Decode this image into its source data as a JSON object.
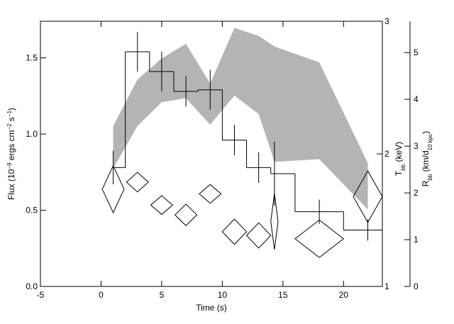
{
  "chart_data": {
    "type": "step",
    "x_label": "Time (s)",
    "y_label": [
      "Flux (10",
      "−9",
      " ergs cm",
      "−2",
      " s",
      "−1",
      ")"
    ],
    "y2_label": [
      "T",
      "bb",
      " (keV)"
    ],
    "y3_label": [
      "R",
      "bb",
      " (km/d",
      "10 kpc",
      ")"
    ],
    "xlim": [
      -5,
      23.2
    ],
    "xticks": [
      -5,
      0,
      5,
      10,
      15,
      20
    ],
    "ylim": [
      0,
      1.74
    ],
    "yticks": [
      {
        "value": 0,
        "label": "0.0"
      },
      {
        "value": 0.5,
        "label": "0.5"
      },
      {
        "value": 1,
        "label": "1.0"
      },
      {
        "value": 1.5,
        "label": "1.5"
      }
    ],
    "y2lim": [
      1,
      3
    ],
    "y2ticks": [
      1,
      2,
      3
    ],
    "y3lim": [
      0,
      5.67
    ],
    "y3ticks": [
      0,
      1,
      2,
      3,
      4,
      5
    ],
    "flux": {
      "bins": [
        1,
        2,
        4,
        6,
        8,
        10,
        12,
        14,
        16,
        20,
        23.2
      ],
      "values": [
        0.78,
        1.54,
        1.41,
        1.28,
        1.29,
        0.96,
        0.78,
        0.74,
        0.49,
        0.37
      ],
      "color": "#000000"
    },
    "flux_errors": {
      "x": [
        1,
        3,
        5,
        7,
        9,
        11,
        13,
        14.3,
        18,
        22
      ],
      "values": [
        0.78,
        1.54,
        1.41,
        1.28,
        1.29,
        0.96,
        0.78,
        0.74,
        0.49,
        0.37
      ],
      "errors": [
        0.11,
        0.13,
        0.13,
        0.1,
        0.13,
        0.1,
        0.1,
        0.21,
        0.08,
        0.07
      ]
    },
    "temperature_band": {
      "axis": "y2",
      "color": "#b4b4b4",
      "x": [
        1,
        3,
        5,
        7,
        9,
        11,
        13,
        14.3,
        18,
        22
      ],
      "upper": [
        2.21,
        2.56,
        2.72,
        2.83,
        2.53,
        2.95,
        2.89,
        2.81,
        2.69,
        1.93
      ],
      "lower": [
        1.89,
        2.21,
        2.39,
        2.42,
        2.22,
        2.44,
        2.3,
        1.94,
        1.96,
        1.58
      ]
    },
    "radius": {
      "axis": "y3",
      "x": [
        1,
        3,
        5,
        7,
        9,
        11,
        13,
        14.3,
        18,
        22
      ],
      "x_errors": [
        0.9,
        0.9,
        0.9,
        0.9,
        0.9,
        1,
        1,
        0.3,
        2,
        1.2
      ],
      "values": [
        2.08,
        2.23,
        1.74,
        1.53,
        1.98,
        1.17,
        1.09,
        1.39,
        1.02,
        1.92
      ],
      "errors": [
        0.5,
        0.21,
        0.2,
        0.23,
        0.2,
        0.27,
        0.27,
        0.6,
        0.4,
        0.55
      ]
    }
  }
}
